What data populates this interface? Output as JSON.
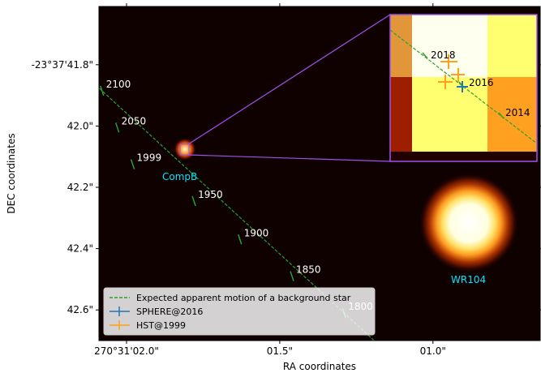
{
  "chart_data": {
    "type": "image-with-track",
    "x_axis": {
      "label": "RA coordinates",
      "ticks": [
        {
          "label": "270°31'02.0\"",
          "sec": 2.0
        },
        {
          "label": "01.5\"",
          "sec": 1.5
        },
        {
          "label": "01.0\"",
          "sec": 1.0
        }
      ],
      "range_sec": [
        2.09,
        0.65
      ]
    },
    "y_axis": {
      "label": "DEC coordinates",
      "ticks": [
        {
          "label": "-23°37'41.8\"",
          "arcsec": 41.8
        },
        {
          "label": "42.0\"",
          "arcsec": 42.0
        },
        {
          "label": "42.2\"",
          "arcsec": 42.2
        },
        {
          "label": "42.4\"",
          "arcsec": 42.4
        },
        {
          "label": "42.6\"",
          "arcsec": 42.6
        }
      ],
      "range_arcsec": [
        41.61,
        42.7
      ]
    },
    "track": {
      "name": "Expected apparent motion of a background star",
      "color": "#2ca02c",
      "epochs": [
        {
          "year": "2100",
          "ra_sec": 2.08,
          "dec_arcsec": 41.885
        },
        {
          "year": "2050",
          "ra_sec": 2.03,
          "dec_arcsec": 42.005
        },
        {
          "year": "1999",
          "ra_sec": 1.98,
          "dec_arcsec": 42.125
        },
        {
          "year": "1950",
          "ra_sec": 1.78,
          "dec_arcsec": 42.245
        },
        {
          "year": "1900",
          "ra_sec": 1.63,
          "dec_arcsec": 42.37
        },
        {
          "year": "1850",
          "ra_sec": 1.46,
          "dec_arcsec": 42.49
        },
        {
          "year": "1800",
          "ra_sec": 1.29,
          "dec_arcsec": 42.61
        }
      ]
    },
    "sources": [
      {
        "label": "CompB",
        "ra_sec": 2.0,
        "dec_arcsec": 42.09,
        "color": "#00e5ff"
      },
      {
        "label": "WR104",
        "ra_sec": 1.03,
        "dec_arcsec": 42.36,
        "color": "#00e5ff"
      }
    ],
    "inset": {
      "epoch_labels": [
        "2018",
        "2016",
        "2014"
      ],
      "measurements": [
        {
          "name": "SPHERE@2016",
          "color": "#1f77b4"
        },
        {
          "name": "HST@1999",
          "color": "#ff9f1a"
        }
      ]
    },
    "legend": {
      "placement": "lower-left",
      "entries": [
        {
          "label": "Expected apparent motion of a background star",
          "color": "#2ca02c",
          "style": "dashed"
        },
        {
          "label": "SPHERE@2016",
          "color": "#1f77b4",
          "style": "errorbar"
        },
        {
          "label": "HST@1999",
          "color": "#ff9f1a",
          "style": "errorbar"
        }
      ]
    },
    "colors": {
      "background": "#0a0000",
      "inset_border": "#a050f0",
      "annotation_text": "#ffffff",
      "source_label": "#00e5ff"
    }
  }
}
